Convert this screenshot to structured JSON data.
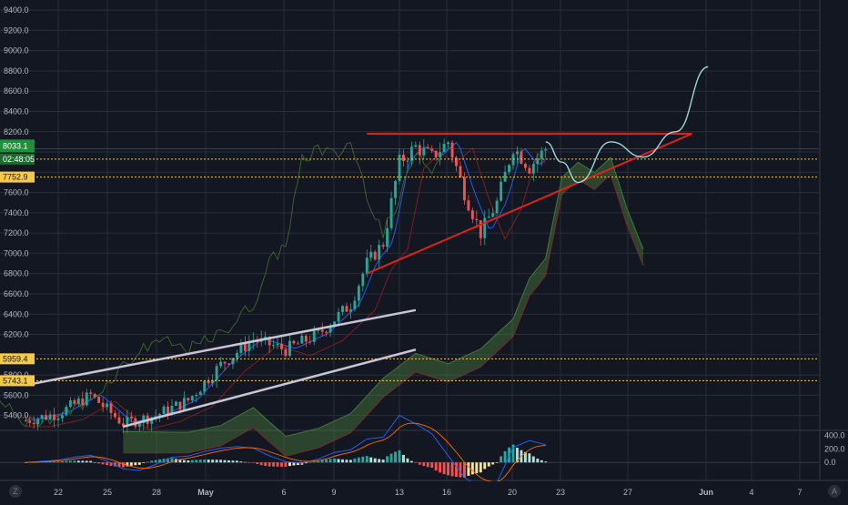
{
  "colors": {
    "background": "#131722",
    "grid": "#2a2e39",
    "up": "#26a69a",
    "down": "#ef5350",
    "trendline_red": "#e0211d",
    "channel_line": "#c9c3d6",
    "projection": "#9ad6d8",
    "dotted_level": "#f7c948",
    "cloud_green": "#4c7a3d",
    "cloud_red": "#7a2a2a",
    "current_price_bg": "#1e8f3a"
  },
  "price_axis": {
    "ticks": [
      "9400.0",
      "9200.0",
      "9000.0",
      "8800.0",
      "8600.0",
      "8400.0",
      "8200.0",
      "7600.0",
      "7400.0",
      "7200.0",
      "7000.0",
      "6800.0",
      "6600.0",
      "6400.0",
      "6200.0",
      "5800.0",
      "5600.0",
      "5400.0"
    ],
    "labels": {
      "current_price": "8033.1",
      "countdown": "02:48:05",
      "level_high": "7752.9",
      "level_mid": "5959.4",
      "level_low": "5743.1"
    }
  },
  "time_axis": {
    "ticks": [
      "22",
      "25",
      "28",
      "May",
      "6",
      "9",
      "13",
      "16",
      "20",
      "23",
      "27",
      "Jun",
      "4",
      "7"
    ]
  },
  "indicator_axis": {
    "ticks": [
      "400.0",
      "200.0",
      "0.0"
    ]
  },
  "corner_buttons": {
    "left": "Z",
    "right": "A"
  },
  "chart_data": {
    "type": "candlestick",
    "price_range": [
      5280,
      9500
    ],
    "x_range": [
      "Apr 20",
      "Jun 8"
    ],
    "indicator_range": [
      -200,
      450
    ],
    "grid": true,
    "series": [
      {
        "x": [
          "Apr 20",
          "Apr 22",
          "Apr 24",
          "Apr 26",
          "Apr 28",
          "Apr 30",
          "May 2",
          "May 4",
          "May 6",
          "May 8",
          "May 10",
          "May 11",
          "May 12",
          "May 13",
          "May 14",
          "May 15",
          "May 16",
          "May 17",
          "May 18",
          "May 19",
          "May 20",
          "May 21",
          "May 22"
        ],
        "close": [
          5350,
          5420,
          5600,
          5320,
          5400,
          5550,
          5900,
          6150,
          6050,
          6200,
          6500,
          6900,
          7100,
          7900,
          8050,
          7950,
          8100,
          7600,
          7200,
          7500,
          8050,
          7850,
          8033
        ]
      }
    ],
    "horizontal_levels": [
      8180,
      7930,
      7752.9,
      5959.4,
      5743.1
    ],
    "trendlines": [
      {
        "from": [
          "May 11",
          6800
        ],
        "to": [
          "May 31",
          8180
        ]
      },
      {
        "from": [
          "May 11",
          8180
        ],
        "to": [
          "May 31",
          8180
        ]
      }
    ],
    "channel": {
      "upper": {
        "from": [
          "Apr 20",
          5700
        ],
        "to": [
          "May 14",
          6440
        ]
      },
      "lower": {
        "from": [
          "Apr 26",
          5290
        ],
        "to": [
          "May 14",
          6050
        ]
      }
    },
    "projection": {
      "x": [
        "May 22",
        "May 23",
        "May 24",
        "May 26",
        "May 28",
        "May 30",
        "Jun 1"
      ],
      "y": [
        8100,
        7900,
        7700,
        8100,
        7950,
        8200,
        8840
      ]
    }
  }
}
